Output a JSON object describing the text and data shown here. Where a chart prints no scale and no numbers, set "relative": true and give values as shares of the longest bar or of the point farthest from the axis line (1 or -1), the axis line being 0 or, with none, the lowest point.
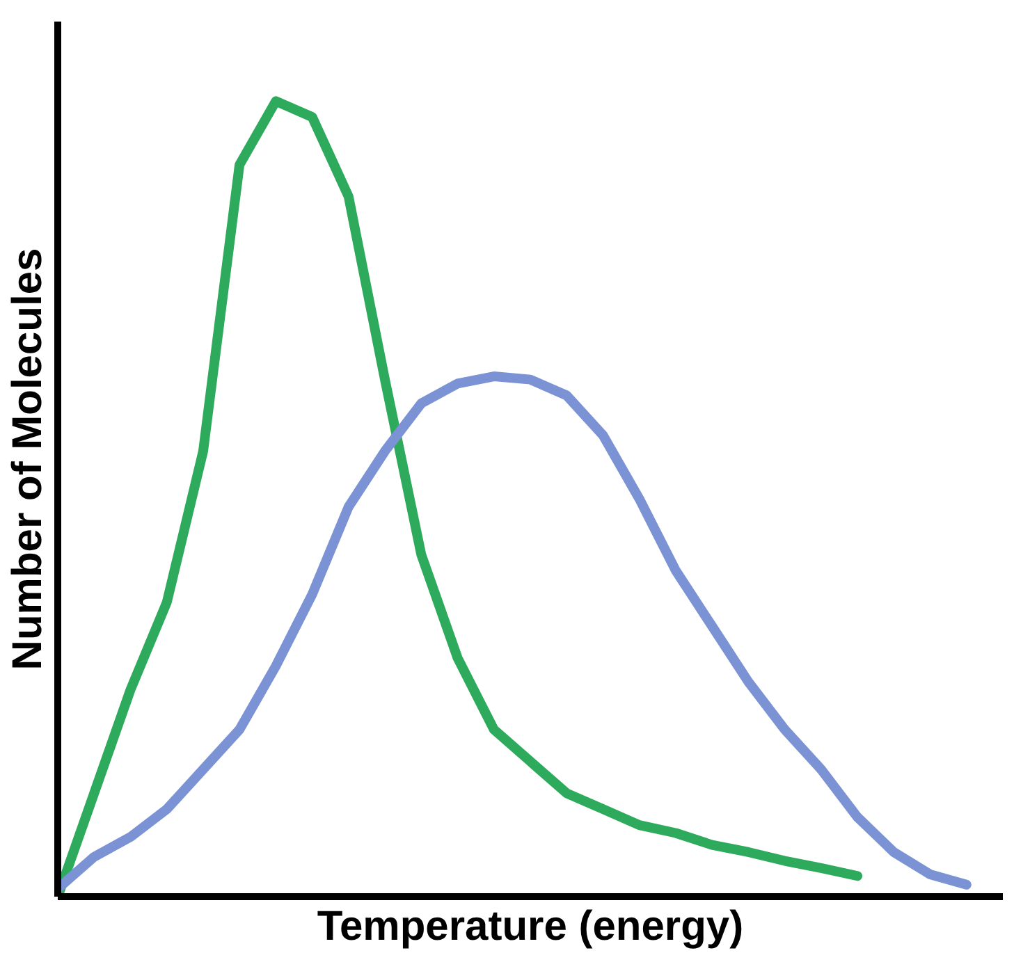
{
  "chart_data": {
    "type": "line",
    "relative": true,
    "xlabel": "Temperature (energy)",
    "ylabel": "Number of Molecules",
    "categories": [
      null,
      null,
      null,
      null,
      null,
      null,
      null,
      null,
      null,
      null,
      null,
      null,
      null,
      null,
      null,
      null,
      null,
      null,
      null,
      null,
      null,
      null,
      null,
      null,
      null,
      null
    ],
    "series": [
      {
        "color": "#2eaa5c",
        "values": [
          0,
          0.13,
          0.26,
          0.37,
          0.56,
          0.92,
          1.0,
          0.98,
          0.88,
          0.65,
          0.43,
          0.3,
          0.21,
          0.17,
          0.13,
          0.11,
          0.09,
          0.08,
          0.065,
          0.056,
          0.045,
          0.036,
          0.026,
          null,
          null,
          null
        ]
      },
      {
        "color": "#7b93d4",
        "values": [
          0.01,
          0.05,
          0.075,
          0.11,
          0.16,
          0.21,
          0.29,
          0.38,
          0.49,
          0.56,
          0.62,
          0.645,
          0.654,
          0.65,
          0.63,
          0.58,
          0.5,
          0.41,
          0.34,
          0.27,
          0.21,
          0.16,
          0.1,
          0.056,
          0.028,
          0.015
        ]
      }
    ],
    "marker": "none",
    "line_style": "solid"
  }
}
